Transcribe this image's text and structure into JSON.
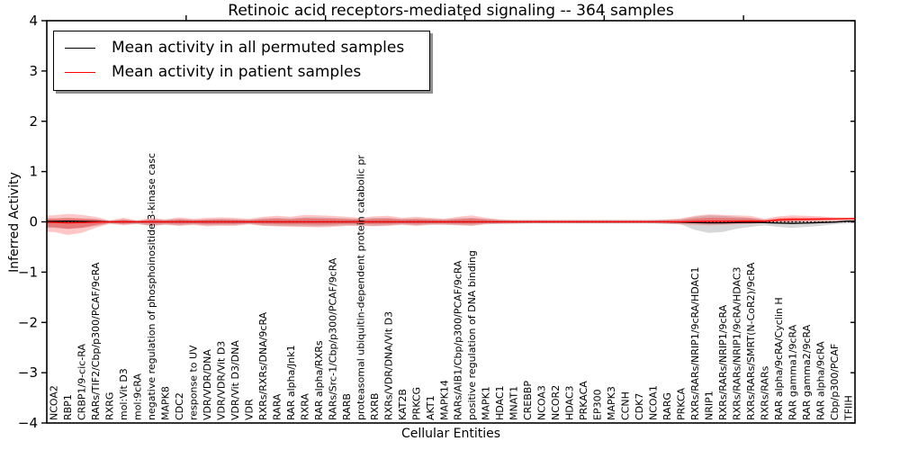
{
  "title": "Retinoic acid receptors-mediated signaling -- 364 samples",
  "chart_data": {
    "type": "line",
    "title": "Retinoic acid receptors-mediated signaling -- 364 samples",
    "xlabel": "Cellular Entities",
    "ylabel": "Inferred Activity",
    "ylim": [
      -4,
      4
    ],
    "ytick_values": [
      -4,
      -3,
      -2,
      -1,
      0,
      1,
      2,
      3,
      4
    ],
    "ytick_labels": [
      "−4",
      "−3",
      "−2",
      "−1",
      "0",
      "1",
      "2",
      "3",
      "4"
    ],
    "top_ticks": [
      10,
      20,
      30,
      40,
      50
    ],
    "grid": false,
    "zero_line": true,
    "legend": {
      "position": "upper left",
      "items": [
        {
          "label": "Mean activity in all permuted samples",
          "color": "#000000"
        },
        {
          "label": "Mean activity in patient samples",
          "color": "#ff0000"
        }
      ]
    },
    "categories": [
      "NCOA2",
      "RBP1",
      "CRBP1/9-cic-RA",
      "RARs/TIF2/Cbp/p300/PCAF/9cRA",
      "RXRG",
      "mol:Vit D3",
      "mol:9cRA",
      "negative regulation of phosphoinositide 3-kinase casc",
      "MAPK8",
      "CDC2",
      "response to UV",
      "VDR/VDR/DNA",
      "VDR/VDR/Vit D3",
      "VDR/Vit D3/DNA",
      "VDR",
      "RXRs/RXRs/DNA/9cRA",
      "RARA",
      "RAR alpha/Jnk1",
      "RXRA",
      "RAR alpha/RXRs",
      "RARs/Src-1/Cbp/p300/PCAF/9cRA",
      "RARB",
      "proteasomal ubiquitin-dependent protein catabolic pr",
      "RXRB",
      "RXRs/VDR/DNA/Vit D3",
      "KAT2B",
      "PRKCG",
      "AKT1",
      "MAPK14",
      "RARs/AIB1/Cbp/p300/PCAF/9cRA",
      "positive regulation of DNA binding",
      "MAPK1",
      "HDAC1",
      "MNAT1",
      "CREBBP",
      "NCOA3",
      "NCOR2",
      "HDAC3",
      "PRKACA",
      "EP300",
      "MAPK3",
      "CCNH",
      "CDK7",
      "NCOA1",
      "RARG",
      "PRKCA",
      "RXRs/RARs/NRIP1/9cRA/HDAC1",
      "NRIP1",
      "RXRs/RARs/NRIP1/9cRA",
      "RXRs/RARs/NRIP1/9cRA/HDAC3",
      "RXRs/RARs/SMRT(N-CoR2)/9cRA",
      "RXRs/RARs",
      "RAR alpha/9cRA/Cyclin H",
      "RAR gamma1/9cRA",
      "RAR gamma2/9cRA",
      "RAR alpha/9cRA",
      "Cbp/p300/PCAF",
      "TFIIH"
    ],
    "series": [
      {
        "name": "Mean activity in all permuted samples",
        "color": "#000000",
        "values": [
          0.01,
          0.015,
          0.01,
          0.005,
          0,
          0,
          0,
          0,
          0,
          0,
          0,
          0,
          0,
          0,
          0,
          0,
          0,
          0,
          0,
          0,
          0,
          0,
          0,
          0,
          0,
          0,
          0,
          0,
          0,
          0,
          0,
          0,
          0,
          0,
          0,
          0,
          0,
          0,
          0,
          0,
          0,
          0,
          0,
          0,
          0,
          -0.005,
          -0.015,
          -0.02,
          -0.02,
          -0.015,
          -0.01,
          -0.015,
          -0.025,
          -0.03,
          -0.025,
          -0.015,
          -0.005,
          0.015
        ]
      },
      {
        "name": "Mean activity in patient samples",
        "color": "#ff0000",
        "values": [
          -0.01,
          -0.02,
          -0.015,
          -0.005,
          0,
          0,
          0,
          0,
          0,
          0,
          0,
          0,
          0,
          0,
          0,
          0,
          0,
          0,
          0,
          0,
          0,
          0,
          0,
          0,
          0,
          0,
          0,
          0,
          0,
          0,
          0,
          0,
          0,
          0,
          0,
          0,
          0,
          0,
          0,
          0,
          0,
          0,
          0,
          0,
          0,
          0,
          0.005,
          0.01,
          0.01,
          0.01,
          0.015,
          0.01,
          0.04,
          0.05,
          0.05,
          0.055,
          0.06,
          0.065
        ]
      }
    ],
    "bands": [
      {
        "name": "permuted samples spread",
        "color": "rgba(130,130,130,0.32)",
        "upper": [
          0.07,
          0.08,
          0.07,
          0.06,
          0.02,
          0.05,
          0.02,
          0.05,
          0.04,
          0.06,
          0.04,
          0.05,
          0.06,
          0.05,
          0.04,
          0.07,
          0.08,
          0.07,
          0.09,
          0.09,
          0.08,
          0.07,
          0.06,
          0.08,
          0.08,
          0.06,
          0.07,
          0.06,
          0.05,
          0.07,
          0.08,
          0.06,
          0.04,
          0.03,
          0.03,
          0.03,
          0.03,
          0.03,
          0.03,
          0.03,
          0.03,
          0.03,
          0.03,
          0.03,
          0.04,
          0.05,
          0.1,
          0.13,
          0.12,
          0.1,
          0.08,
          0.04,
          0.03,
          0.03,
          0.02,
          0.02,
          0.02,
          0.02
        ],
        "lower": [
          -0.12,
          -0.14,
          -0.12,
          -0.08,
          -0.03,
          -0.05,
          -0.04,
          -0.08,
          -0.05,
          -0.07,
          -0.05,
          -0.07,
          -0.06,
          -0.06,
          -0.04,
          -0.07,
          -0.08,
          -0.08,
          -0.09,
          -0.09,
          -0.08,
          -0.07,
          -0.07,
          -0.08,
          -0.07,
          -0.05,
          -0.07,
          -0.05,
          -0.05,
          -0.06,
          -0.07,
          -0.04,
          -0.04,
          -0.03,
          -0.03,
          -0.03,
          -0.03,
          -0.03,
          -0.03,
          -0.03,
          -0.03,
          -0.03,
          -0.03,
          -0.03,
          -0.04,
          -0.05,
          -0.16,
          -0.22,
          -0.2,
          -0.14,
          -0.1,
          -0.07,
          -0.1,
          -0.12,
          -0.1,
          -0.08,
          -0.05,
          -0.03
        ]
      },
      {
        "name": "patient samples spread",
        "color": "rgba(255,0,0,0.22)",
        "upper": [
          0.13,
          0.16,
          0.14,
          0.1,
          0.03,
          0.08,
          0.03,
          0.08,
          0.05,
          0.09,
          0.06,
          0.08,
          0.09,
          0.08,
          0.06,
          0.1,
          0.12,
          0.1,
          0.14,
          0.13,
          0.12,
          0.1,
          0.08,
          0.11,
          0.12,
          0.08,
          0.1,
          0.08,
          0.06,
          0.1,
          0.13,
          0.08,
          0.05,
          0.04,
          0.04,
          0.04,
          0.04,
          0.04,
          0.04,
          0.04,
          0.04,
          0.04,
          0.04,
          0.04,
          0.05,
          0.07,
          0.12,
          0.15,
          0.14,
          0.13,
          0.12,
          0.06,
          0.11,
          0.13,
          0.12,
          0.11,
          0.09,
          0.08
        ],
        "lower": [
          -0.2,
          -0.26,
          -0.22,
          -0.12,
          -0.04,
          -0.07,
          -0.04,
          -0.08,
          -0.06,
          -0.08,
          -0.06,
          -0.09,
          -0.08,
          -0.08,
          -0.05,
          -0.08,
          -0.09,
          -0.1,
          -0.1,
          -0.11,
          -0.1,
          -0.08,
          -0.08,
          -0.09,
          -0.08,
          -0.06,
          -0.08,
          -0.06,
          -0.06,
          -0.07,
          -0.08,
          -0.05,
          -0.04,
          -0.04,
          -0.03,
          -0.03,
          -0.03,
          -0.03,
          -0.03,
          -0.03,
          -0.03,
          -0.03,
          -0.03,
          -0.03,
          -0.04,
          -0.05,
          -0.06,
          -0.07,
          -0.06,
          -0.05,
          -0.04,
          -0.02,
          -0.01,
          -0.01,
          0.0,
          0.0,
          0.01,
          0.02
        ]
      }
    ]
  }
}
